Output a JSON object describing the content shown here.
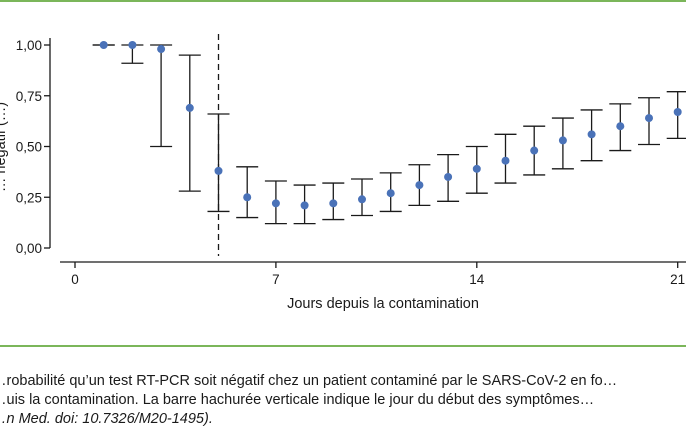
{
  "chart_data": {
    "type": "scatter",
    "title": "",
    "xlabel": "Jours depuis la contamination",
    "ylabel": "… négatif (…)",
    "xlim": [
      0,
      21
    ],
    "ylim": [
      0,
      1
    ],
    "x_ticks": [
      0,
      7,
      14,
      21
    ],
    "x_tick_labels": [
      "0",
      "7",
      "14",
      "21"
    ],
    "y_ticks": [
      0,
      0.25,
      0.5,
      0.75,
      1
    ],
    "y_tick_labels": [
      "0,00",
      "0,25",
      "0,50",
      "0,75",
      "1,00"
    ],
    "symptom_onset_day": 5,
    "grid": false,
    "colors": {
      "point": "#4a72b8",
      "errorbar": "#1a1a1a",
      "axis": "#1a1a1a",
      "rule": "#7bb65a"
    },
    "points": [
      {
        "x": 1,
        "y": 1.0,
        "lo": 1.0,
        "hi": 1.0
      },
      {
        "x": 2,
        "y": 1.0,
        "lo": 0.91,
        "hi": 1.0
      },
      {
        "x": 3,
        "y": 0.98,
        "lo": 0.5,
        "hi": 1.0
      },
      {
        "x": 4,
        "y": 0.69,
        "lo": 0.28,
        "hi": 0.95
      },
      {
        "x": 5,
        "y": 0.38,
        "lo": 0.18,
        "hi": 0.66
      },
      {
        "x": 6,
        "y": 0.25,
        "lo": 0.15,
        "hi": 0.4
      },
      {
        "x": 7,
        "y": 0.22,
        "lo": 0.12,
        "hi": 0.33
      },
      {
        "x": 8,
        "y": 0.21,
        "lo": 0.12,
        "hi": 0.31
      },
      {
        "x": 9,
        "y": 0.22,
        "lo": 0.14,
        "hi": 0.32
      },
      {
        "x": 10,
        "y": 0.24,
        "lo": 0.16,
        "hi": 0.34
      },
      {
        "x": 11,
        "y": 0.27,
        "lo": 0.18,
        "hi": 0.37
      },
      {
        "x": 12,
        "y": 0.31,
        "lo": 0.21,
        "hi": 0.41
      },
      {
        "x": 13,
        "y": 0.35,
        "lo": 0.23,
        "hi": 0.46
      },
      {
        "x": 14,
        "y": 0.39,
        "lo": 0.27,
        "hi": 0.5
      },
      {
        "x": 15,
        "y": 0.43,
        "lo": 0.32,
        "hi": 0.56
      },
      {
        "x": 16,
        "y": 0.48,
        "lo": 0.36,
        "hi": 0.6
      },
      {
        "x": 17,
        "y": 0.53,
        "lo": 0.39,
        "hi": 0.64
      },
      {
        "x": 18,
        "y": 0.56,
        "lo": 0.43,
        "hi": 0.68
      },
      {
        "x": 19,
        "y": 0.6,
        "lo": 0.48,
        "hi": 0.71
      },
      {
        "x": 20,
        "y": 0.64,
        "lo": 0.51,
        "hi": 0.74
      },
      {
        "x": 21,
        "y": 0.67,
        "lo": 0.54,
        "hi": 0.77
      }
    ]
  },
  "caption": {
    "line1": "…robabilité qu’un test RT-PCR soit négatif chez un patient contaminé par le SARS-CoV-2 en fo…",
    "line2": "…uis la contamination. La barre hachurée verticale indique le jour du début des symptômes…",
    "line3": "…n Med. doi: 10.7326/M20-1495)."
  }
}
